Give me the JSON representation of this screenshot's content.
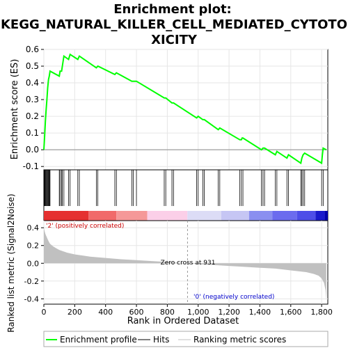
{
  "chart_data": {
    "type": "line",
    "title_lines": [
      "Enrichment plot:",
      "KEGG_NATURAL_KILLER_CELL_MEDIATED_CYTOTO",
      "XICITY"
    ],
    "es_panel": {
      "ylabel": "Enrichment score (ES)",
      "ylim": [
        -0.12,
        0.6
      ],
      "yticks": [
        "-0.1",
        "0.0",
        "0.1",
        "0.2",
        "0.3",
        "0.4",
        "0.5",
        "0.6"
      ],
      "ytick_values": [
        -0.1,
        0.0,
        0.1,
        0.2,
        0.3,
        0.4,
        0.5,
        0.6
      ],
      "series": [
        {
          "name": "Enrichment profile",
          "color": "#00ff00",
          "x": [
            0,
            5,
            10,
            15,
            20,
            25,
            30,
            35,
            40,
            100,
            105,
            115,
            120,
            130,
            160,
            170,
            220,
            230,
            340,
            350,
            460,
            470,
            570,
            580,
            600,
            780,
            790,
            830,
            840,
            990,
            1000,
            1030,
            1040,
            1130,
            1140,
            1270,
            1280,
            1285,
            1290,
            1410,
            1420,
            1425,
            1430,
            1500,
            1510,
            1575,
            1585,
            1665,
            1672,
            1680,
            1690,
            1800,
            1805,
            1810,
            1830
          ],
          "y": [
            0.0,
            0.08,
            0.17,
            0.24,
            0.3,
            0.37,
            0.42,
            0.44,
            0.47,
            0.44,
            0.47,
            0.47,
            0.5,
            0.56,
            0.54,
            0.57,
            0.54,
            0.56,
            0.49,
            0.5,
            0.45,
            0.46,
            0.41,
            0.41,
            0.41,
            0.31,
            0.31,
            0.28,
            0.28,
            0.19,
            0.2,
            0.18,
            0.18,
            0.12,
            0.13,
            0.06,
            0.06,
            0.07,
            0.07,
            0.0,
            0.01,
            0.01,
            0.01,
            -0.03,
            -0.01,
            -0.05,
            -0.03,
            -0.08,
            -0.05,
            -0.03,
            -0.02,
            -0.08,
            -0.03,
            0.01,
            0.0
          ]
        }
      ]
    },
    "hits_panel": {
      "hit_positions": [
        2,
        5,
        8,
        12,
        16,
        20,
        25,
        28,
        32,
        36,
        40,
        100,
        105,
        115,
        120,
        130,
        160,
        170,
        220,
        230,
        340,
        350,
        460,
        470,
        570,
        580,
        600,
        780,
        790,
        830,
        840,
        990,
        1000,
        1030,
        1040,
        1130,
        1140,
        1270,
        1280,
        1290,
        1410,
        1420,
        1430,
        1500,
        1510,
        1575,
        1585,
        1665,
        1672,
        1680,
        1690,
        1800,
        1810
      ]
    },
    "heat_bar": {
      "segments": [
        {
          "x0": 0,
          "x1": 290,
          "color": "#e53030"
        },
        {
          "x0": 290,
          "x1": 470,
          "color": "#f16a6a"
        },
        {
          "x0": 470,
          "x1": 670,
          "color": "#f59898"
        },
        {
          "x0": 670,
          "x1": 930,
          "color": "#fbcfe8"
        },
        {
          "x0": 930,
          "x1": 1150,
          "color": "#dcdcf6"
        },
        {
          "x0": 1150,
          "x1": 1330,
          "color": "#c6c6f4"
        },
        {
          "x0": 1330,
          "x1": 1480,
          "color": "#8a8ff0"
        },
        {
          "x0": 1480,
          "x1": 1640,
          "color": "#6b6bee"
        },
        {
          "x0": 1640,
          "x1": 1760,
          "color": "#4e4ee8"
        },
        {
          "x0": 1760,
          "x1": 1820,
          "color": "#1a1acc"
        },
        {
          "x0": 1820,
          "x1": 1840,
          "color": "#0000aa"
        }
      ]
    },
    "metric_panel": {
      "ylabel": "Ranked list metric (Signal2Noise)",
      "ylim": [
        -0.46,
        0.48
      ],
      "yticks": [
        "-0.4",
        "-0.2",
        "0.0",
        "0.2",
        "0.4"
      ],
      "ytick_values": [
        -0.4,
        -0.2,
        0.0,
        0.2,
        0.4
      ],
      "color": "#c0c0c0",
      "x": [
        0,
        5,
        10,
        20,
        30,
        40,
        60,
        80,
        100,
        150,
        200,
        300,
        400,
        500,
        600,
        700,
        800,
        931,
        1000,
        1100,
        1200,
        1300,
        1400,
        1500,
        1600,
        1650,
        1700,
        1750,
        1780,
        1800,
        1815,
        1825,
        1830
      ],
      "y": [
        0.4,
        0.36,
        0.33,
        0.29,
        0.25,
        0.22,
        0.19,
        0.17,
        0.15,
        0.12,
        0.1,
        0.075,
        0.06,
        0.045,
        0.035,
        0.025,
        0.015,
        0.0,
        -0.01,
        -0.02,
        -0.03,
        -0.04,
        -0.05,
        -0.06,
        -0.08,
        -0.09,
        -0.1,
        -0.12,
        -0.14,
        -0.17,
        -0.22,
        -0.3,
        -0.42
      ]
    },
    "annotations": {
      "pos_label": "'2' (positively correlated)",
      "neg_label": "'0' (negatively correlated)",
      "zero_cross": "Zero cross at 931",
      "zero_cross_rank": 931
    },
    "xaxis": {
      "xlabel": "Rank in Ordered Dataset",
      "xlim": [
        0,
        1840
      ],
      "ticks": [
        0,
        200,
        400,
        600,
        800,
        1000,
        1200,
        1400,
        1600,
        1800
      ],
      "tick_labels": [
        "0",
        "200",
        "400",
        "600",
        "800",
        "1,000",
        "1,200",
        "1,400",
        "1,600",
        "1,800"
      ]
    },
    "legend": {
      "placement": "bottom",
      "entries": [
        {
          "label": "Enrichment profile",
          "color": "#00ff00"
        },
        {
          "label": "Hits",
          "color": "#000000"
        },
        {
          "label": "Ranking metric scores",
          "color": "#c0c0c0"
        }
      ]
    }
  }
}
